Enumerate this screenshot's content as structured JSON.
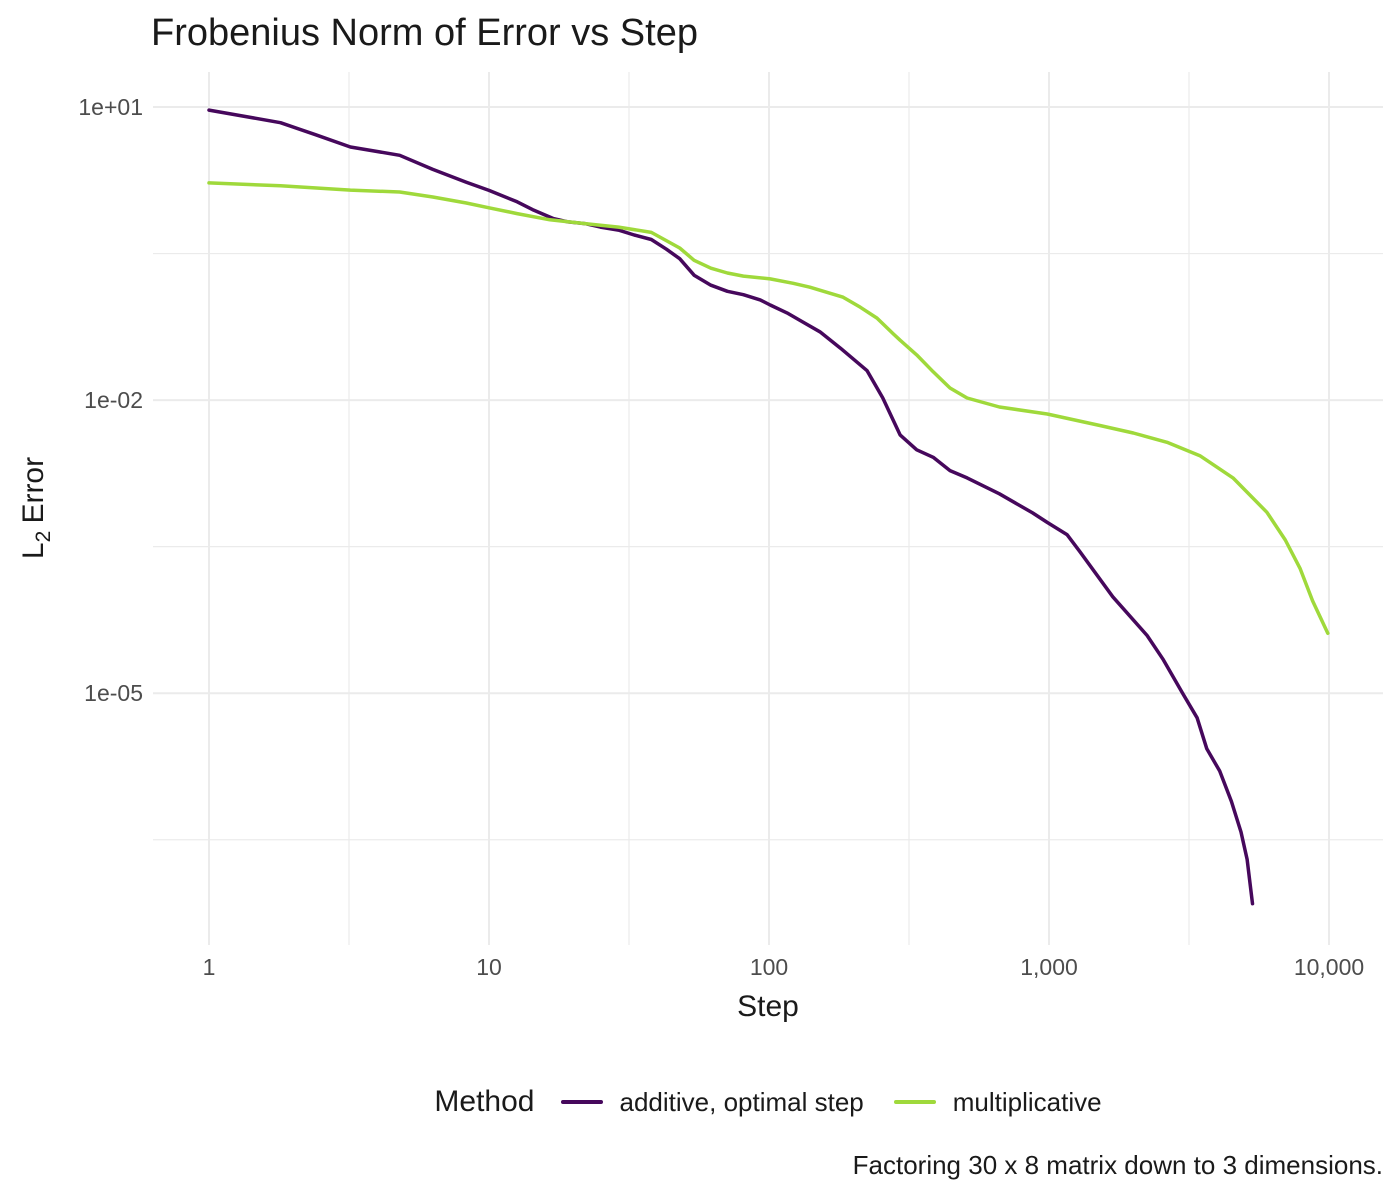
{
  "title": "Frobenius Norm of Error vs Step",
  "caption": "Factoring 30 x 8 matrix down to 3 dimensions.",
  "axes": {
    "x": {
      "label": "Step",
      "scale": "log10",
      "ticks": [
        {
          "value": 1,
          "label": "1"
        },
        {
          "value": 10,
          "label": "10"
        },
        {
          "value": 100,
          "label": "100"
        },
        {
          "value": 1000,
          "label": "1,000"
        },
        {
          "value": 10000,
          "label": "10,000"
        }
      ],
      "minor": [
        3.1623,
        31.623,
        316.23,
        3162.3
      ]
    },
    "y": {
      "label_parts": {
        "main": "L",
        "sub": "2",
        "rest": "Error"
      },
      "scale": "log10",
      "ticks": [
        {
          "value": 10,
          "label": "1e+01"
        },
        {
          "value": 0.01,
          "label": "1e-02"
        },
        {
          "value": 1e-05,
          "label": "1e-05"
        }
      ],
      "minor": [
        0.31623,
        0.00031623,
        3.1623e-07
      ]
    }
  },
  "legend": {
    "title": "Method",
    "position": "bottom",
    "items": [
      {
        "label": "additive, optimal step",
        "color": "#46085C"
      },
      {
        "label": "multiplicative",
        "color": "#9FD93B"
      }
    ]
  },
  "colors": {
    "grid": "#EBEBEB",
    "tick_text": "#4D4D4D",
    "text": "#1A1A1A",
    "background": "#FFFFFF"
  },
  "chart_data": {
    "type": "line",
    "title": "Frobenius Norm of Error vs Step",
    "xlabel": "Step",
    "ylabel": "L2 Error",
    "x_scale": "log10",
    "y_scale": "log10",
    "x_range": [
      1,
      10000
    ],
    "y_tick_labels": [
      "1e+01",
      "1e-02",
      "1e-05"
    ],
    "grid": "on",
    "legend_position": "bottom",
    "series": [
      {
        "name": "additive, optimal step",
        "color": "#46085C",
        "points": [
          [
            1,
            9.3
          ],
          [
            1.8,
            6.9
          ],
          [
            2.4,
            5.2
          ],
          [
            3.2,
            3.9
          ],
          [
            4.8,
            3.2
          ],
          [
            6.3,
            2.3
          ],
          [
            8.3,
            1.7
          ],
          [
            10,
            1.4
          ],
          [
            12.6,
            1.07
          ],
          [
            14.3,
            0.89
          ],
          [
            17,
            0.72
          ],
          [
            19,
            0.67
          ],
          [
            22,
            0.64
          ],
          [
            25,
            0.59
          ],
          [
            29,
            0.55
          ],
          [
            33,
            0.49
          ],
          [
            38,
            0.44
          ],
          [
            43,
            0.35
          ],
          [
            48,
            0.28
          ],
          [
            54,
            0.19
          ],
          [
            62,
            0.15
          ],
          [
            71,
            0.13
          ],
          [
            81,
            0.12
          ],
          [
            93,
            0.106
          ],
          [
            101,
            0.094
          ],
          [
            116,
            0.078
          ],
          [
            132,
            0.063
          ],
          [
            152,
            0.05
          ],
          [
            180,
            0.034
          ],
          [
            224,
            0.02
          ],
          [
            255,
            0.0105
          ],
          [
            294,
            0.0044
          ],
          [
            337,
            0.0031
          ],
          [
            386,
            0.0026
          ],
          [
            443,
            0.0019
          ],
          [
            510,
            0.0016
          ],
          [
            665,
            0.0011
          ],
          [
            874,
            0.0007
          ],
          [
            985,
            0.00056
          ],
          [
            1160,
            0.00042
          ],
          [
            1290,
            0.00028
          ],
          [
            1690,
            9.7e-05
          ],
          [
            2240,
            3.9e-05
          ],
          [
            2560,
            2.2e-05
          ],
          [
            3000,
            1e-05
          ],
          [
            3380,
            5.6e-06
          ],
          [
            3660,
            2.7e-06
          ],
          [
            4070,
            1.6e-06
          ],
          [
            4480,
            7.8e-07
          ],
          [
            4850,
            3.8e-07
          ],
          [
            5100,
            2e-07
          ],
          [
            5330,
            7e-08
          ]
        ]
      },
      {
        "name": "multiplicative",
        "color": "#9FD93B",
        "points": [
          [
            1,
            1.67
          ],
          [
            1.8,
            1.56
          ],
          [
            3.2,
            1.41
          ],
          [
            4.8,
            1.35
          ],
          [
            6.3,
            1.2
          ],
          [
            8.3,
            1.04
          ],
          [
            10,
            0.93
          ],
          [
            12.6,
            0.81
          ],
          [
            16.5,
            0.7
          ],
          [
            22,
            0.64
          ],
          [
            29,
            0.59
          ],
          [
            38,
            0.52
          ],
          [
            48,
            0.36
          ],
          [
            54,
            0.27
          ],
          [
            62,
            0.224
          ],
          [
            71,
            0.2
          ],
          [
            81,
            0.186
          ],
          [
            101,
            0.174
          ],
          [
            122,
            0.157
          ],
          [
            140,
            0.143
          ],
          [
            161,
            0.127
          ],
          [
            184,
            0.113
          ],
          [
            212,
            0.089
          ],
          [
            243,
            0.069
          ],
          [
            277,
            0.048
          ],
          [
            294,
            0.041
          ],
          [
            337,
            0.029
          ],
          [
            386,
            0.0195
          ],
          [
            443,
            0.0133
          ],
          [
            510,
            0.0105
          ],
          [
            665,
            0.0085
          ],
          [
            985,
            0.0072
          ],
          [
            1520,
            0.0055
          ],
          [
            2000,
            0.0046
          ],
          [
            2640,
            0.0037
          ],
          [
            3460,
            0.0027
          ],
          [
            4540,
            0.0016
          ],
          [
            6000,
            0.00071
          ],
          [
            6980,
            0.00037
          ],
          [
            7880,
            0.00019
          ],
          [
            8740,
            8.8e-05
          ],
          [
            9900,
            4.1e-05
          ]
        ]
      }
    ]
  }
}
